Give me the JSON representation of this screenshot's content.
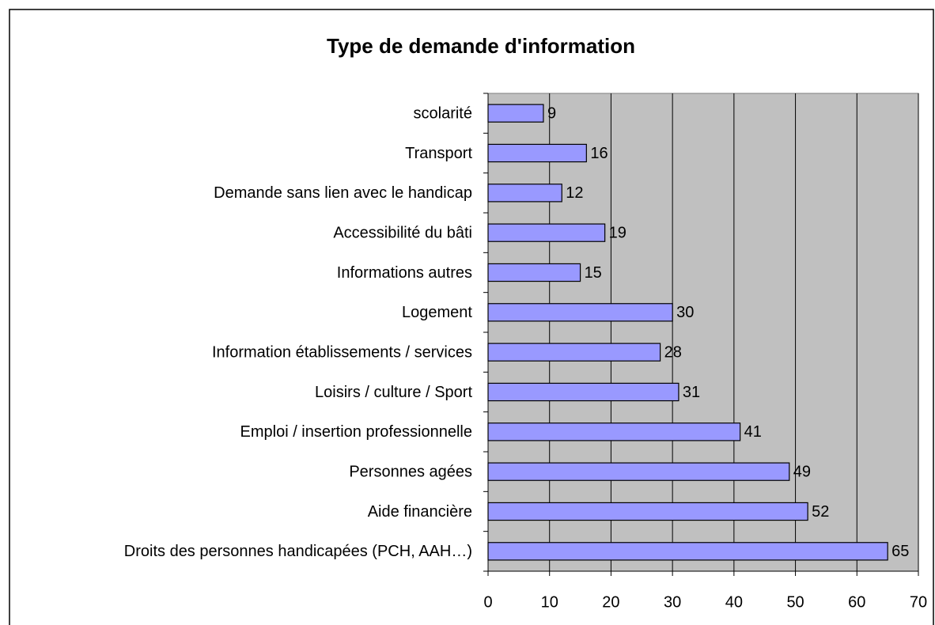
{
  "chart_data": {
    "type": "bar",
    "orientation": "horizontal",
    "title": "Type de demande d'information",
    "categories": [
      "scolarité",
      "Transport",
      "Demande sans lien avec le handicap",
      "Accessibilité du bâti",
      "Informations autres",
      "Logement",
      "Information établissements / services",
      "Loisirs / culture / Sport",
      "Emploi / insertion professionnelle",
      "Personnes agées",
      "Aide financière",
      "Droits des personnes handicapées (PCH, AAH…)"
    ],
    "values": [
      9,
      16,
      12,
      19,
      15,
      30,
      28,
      31,
      41,
      49,
      52,
      65
    ],
    "color": "#9999ff",
    "plot_background": "#c0c0c0",
    "xlim": [
      0,
      70
    ],
    "xticks": [
      0,
      10,
      20,
      30,
      40,
      50,
      60,
      70
    ],
    "grid": true
  }
}
